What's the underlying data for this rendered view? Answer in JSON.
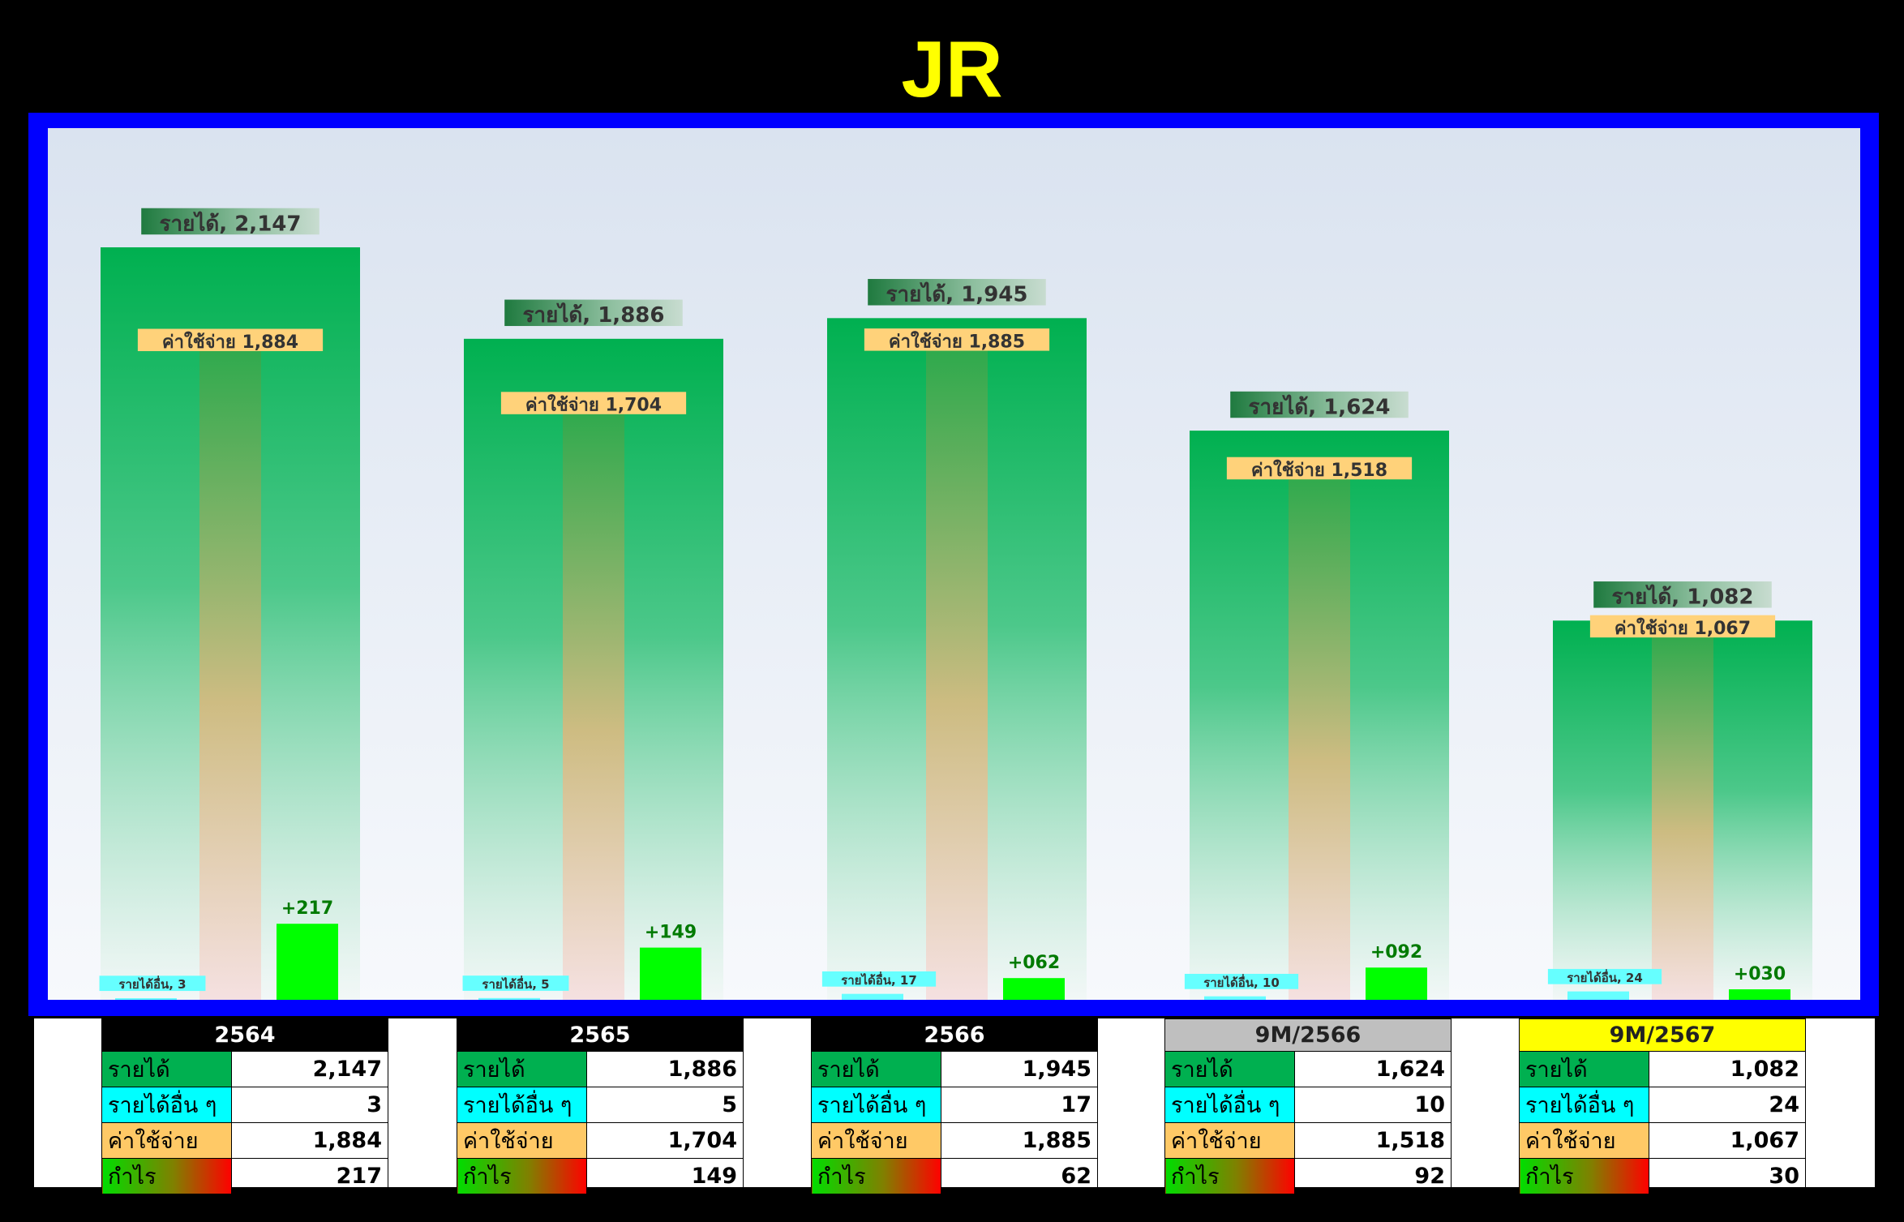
{
  "title": "JR",
  "chart_data": {
    "type": "bar",
    "categories": [
      "2564",
      "2565",
      "2566",
      "9M/2566",
      "9M/2567"
    ],
    "series": [
      {
        "name": "รายได้",
        "values": [
          2147,
          1886,
          1945,
          1624,
          1082
        ],
        "color": "#00b050",
        "labels": [
          "รายได้, 2,147",
          "รายได้, 1,886",
          "รายได้, 1,945",
          "รายได้, 1,624",
          "รายได้, 1,082"
        ]
      },
      {
        "name": "ค่าใช้จ่าย",
        "values": [
          1884,
          1704,
          1885,
          1518,
          1067
        ],
        "color": "#ffc000",
        "labels": [
          "ค่าใช้จ่าย 1,884",
          "ค่าใช้จ่าย 1,704",
          "ค่าใช้จ่าย 1,885",
          "ค่าใช้จ่าย 1,518",
          "ค่าใช้จ่าย 1,067"
        ]
      },
      {
        "name": "รายได้อื่น",
        "values": [
          3,
          5,
          17,
          10,
          24
        ],
        "color": "#66ffff",
        "labels": [
          "รายได้อื่น, 3",
          "รายได้อื่น, 5",
          "รายได้อื่น, 17",
          "รายได้อื่น, 10",
          "รายได้อื่น, 24"
        ]
      },
      {
        "name": "กำไร",
        "values": [
          217,
          149,
          62,
          92,
          30
        ],
        "color": "#00ff00",
        "labels": [
          "+217",
          "+149",
          "+062",
          "+092",
          "+030"
        ]
      }
    ],
    "ylim": [
      0,
      2400
    ],
    "grid": false,
    "legend": "none"
  },
  "tables": [
    {
      "header": "2564",
      "header_bg": "#000000",
      "header_color": "#ffffff",
      "rows": [
        {
          "label": "รายได้",
          "value": "2,147"
        },
        {
          "label": "รายได้อื่น ๆ",
          "value": "3"
        },
        {
          "label": "ค่าใช้จ่าย",
          "value": "1,884"
        },
        {
          "label": "กำไร",
          "value": "217"
        }
      ]
    },
    {
      "header": "2565",
      "header_bg": "#000000",
      "header_color": "#ffffff",
      "rows": [
        {
          "label": "รายได้",
          "value": "1,886"
        },
        {
          "label": "รายได้อื่น ๆ",
          "value": "5"
        },
        {
          "label": "ค่าใช้จ่าย",
          "value": "1,704"
        },
        {
          "label": "กำไร",
          "value": "149"
        }
      ]
    },
    {
      "header": "2566",
      "header_bg": "#000000",
      "header_color": "#ffffff",
      "rows": [
        {
          "label": "รายได้",
          "value": "1,945"
        },
        {
          "label": "รายได้อื่น ๆ",
          "value": "17"
        },
        {
          "label": "ค่าใช้จ่าย",
          "value": "1,885"
        },
        {
          "label": "กำไร",
          "value": "62"
        }
      ]
    },
    {
      "header": "9M/2566",
      "header_bg": "#bfbfbf",
      "header_color": "#222222",
      "rows": [
        {
          "label": "รายได้",
          "value": "1,624"
        },
        {
          "label": "รายได้อื่น ๆ",
          "value": "10"
        },
        {
          "label": "ค่าใช้จ่าย",
          "value": "1,518"
        },
        {
          "label": "กำไร",
          "value": "92"
        }
      ]
    },
    {
      "header": "9M/2567",
      "header_bg": "#ffff00",
      "header_color": "#222222",
      "rows": [
        {
          "label": "รายได้",
          "value": "1,082"
        },
        {
          "label": "รายได้อื่น ๆ",
          "value": "24"
        },
        {
          "label": "ค่าใช้จ่าย",
          "value": "1,067"
        },
        {
          "label": "กำไร",
          "value": "30"
        }
      ]
    }
  ]
}
